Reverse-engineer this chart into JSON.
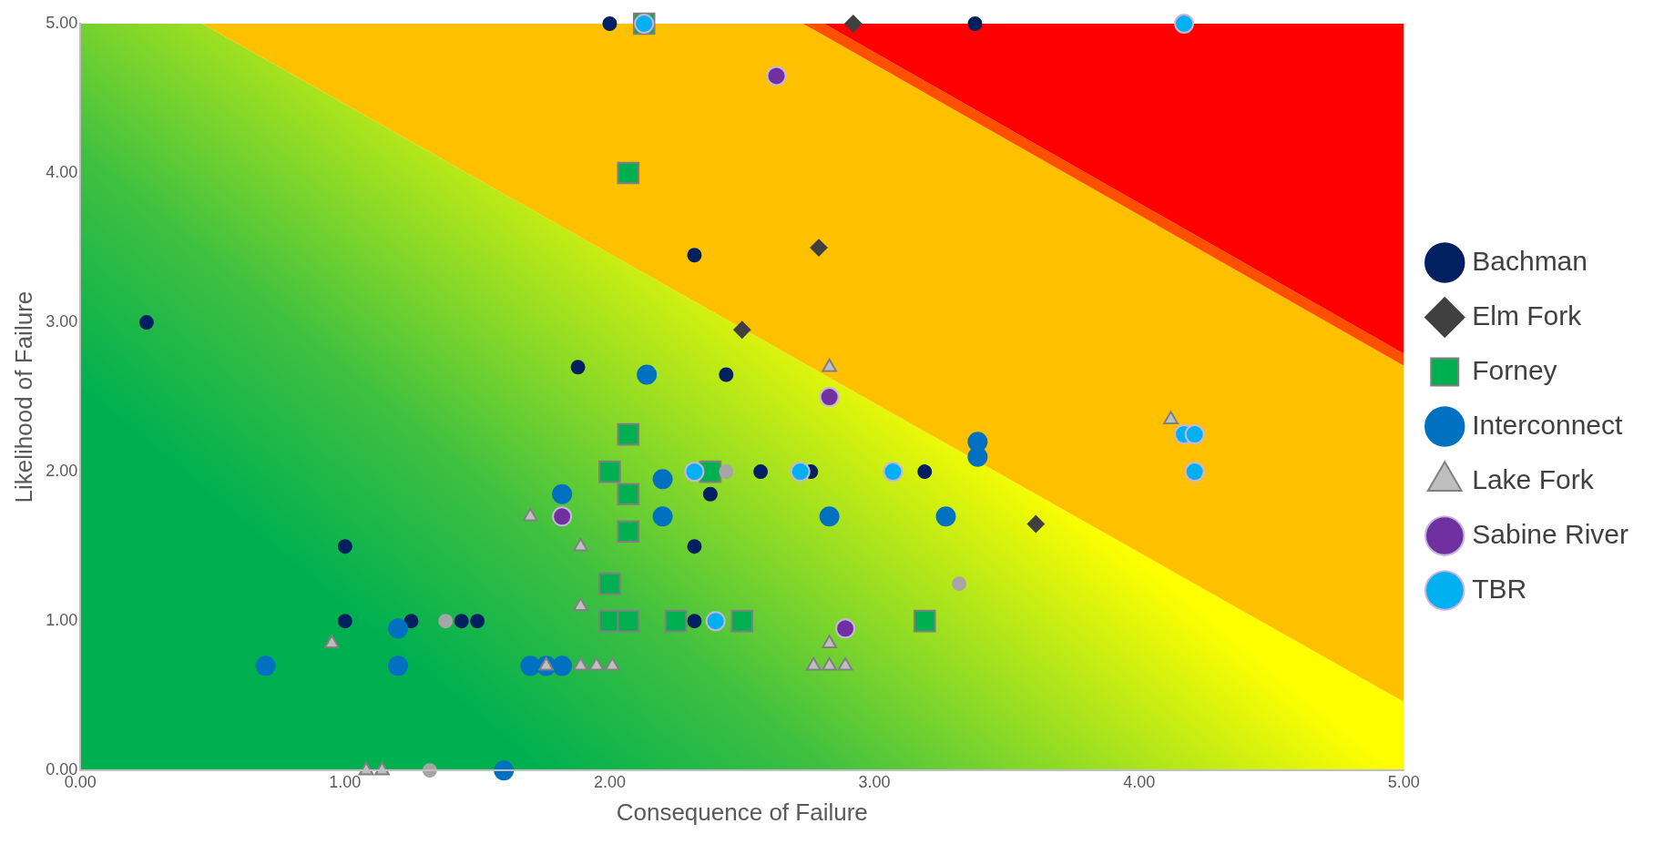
{
  "chart_data": {
    "type": "scatter",
    "xlabel": "Consequence of Failure",
    "ylabel": "Likelihood of Failure",
    "xlim": [
      0,
      5
    ],
    "ylim": [
      0,
      5
    ],
    "xticks": [
      {
        "value": 0,
        "label": "0.00"
      },
      {
        "value": 1,
        "label": "1.00"
      },
      {
        "value": 2,
        "label": "2.00"
      },
      {
        "value": 3,
        "label": "3.00"
      },
      {
        "value": 4,
        "label": "4.00"
      },
      {
        "value": 5,
        "label": "5.00"
      }
    ],
    "yticks": [
      {
        "value": 0,
        "label": "0.00"
      },
      {
        "value": 1,
        "label": "1.00"
      },
      {
        "value": 2,
        "label": "2.00"
      },
      {
        "value": 3,
        "label": "3.00"
      },
      {
        "value": 4,
        "label": "4.00"
      },
      {
        "value": 5,
        "label": "5.00"
      }
    ],
    "grid": false,
    "legend": "right",
    "series": [
      {
        "name": "Bachman",
        "color": "#002060",
        "marker": "circle",
        "x": [
          2.0,
          3.38,
          0.25,
          2.32,
          1.88,
          2.44,
          2.57,
          2.76,
          3.19,
          2.38,
          2.32,
          1.0,
          1.0,
          1.25,
          1.44,
          1.5,
          2.32
        ],
        "values": [
          5.0,
          5.0,
          3.0,
          3.45,
          2.7,
          2.65,
          2.0,
          2.0,
          2.0,
          1.85,
          1.5,
          1.5,
          1.0,
          1.0,
          1.0,
          1.0,
          1.0
        ]
      },
      {
        "name": "Elm Fork",
        "color": "#404040",
        "marker": "diamond",
        "x": [
          2.92,
          2.79,
          2.5,
          3.61
        ],
        "values": [
          5.0,
          3.5,
          2.95,
          1.65
        ]
      },
      {
        "name": "Forney",
        "color": "#00b050",
        "marker": "square",
        "x": [
          2.13,
          2.07,
          2.07,
          2.0,
          2.38,
          2.07,
          2.07,
          2.0,
          2.0,
          2.07,
          2.25,
          2.5,
          3.19
        ],
        "values": [
          5.0,
          4.0,
          2.25,
          2.0,
          2.0,
          1.85,
          1.6,
          1.25,
          1.0,
          1.0,
          1.0,
          1.0,
          1.0
        ]
      },
      {
        "name": "Interconnect",
        "color": "#0070c0",
        "marker": "circle",
        "x": [
          0.7,
          1.2,
          1.2,
          1.7,
          1.76,
          1.82,
          1.6,
          1.82,
          2.14,
          2.2,
          2.2,
          2.83,
          3.27,
          3.39,
          3.39
        ],
        "values": [
          0.7,
          0.95,
          0.7,
          0.7,
          0.7,
          0.7,
          0.0,
          1.85,
          2.65,
          1.95,
          1.7,
          1.7,
          1.7,
          2.2,
          2.1
        ]
      },
      {
        "name": "Lake Fork",
        "color": "#bfbfbf",
        "marker": "triangle",
        "x": [
          0.95,
          1.08,
          1.14,
          1.7,
          1.89,
          1.89,
          1.76,
          1.89,
          1.95,
          2.01,
          2.83,
          2.77,
          2.83,
          2.89,
          2.83,
          4.12
        ],
        "values": [
          0.85,
          0.0,
          0.0,
          1.7,
          1.5,
          1.1,
          0.7,
          0.7,
          0.7,
          0.7,
          2.7,
          0.7,
          0.7,
          0.7,
          0.85,
          2.35
        ]
      },
      {
        "name": "Sabine River",
        "color": "#7030a0",
        "marker": "circle",
        "x": [
          2.63,
          2.83,
          1.82,
          2.89
        ],
        "values": [
          4.65,
          2.5,
          1.7,
          0.95
        ]
      },
      {
        "name": "TBR",
        "color": "#00b0f0",
        "marker": "circle",
        "x": [
          2.13,
          4.17,
          2.32,
          2.72,
          3.07,
          2.4,
          4.17,
          4.21,
          4.21
        ],
        "values": [
          5.0,
          5.0,
          2.0,
          2.0,
          2.0,
          1.0,
          2.25,
          2.25,
          2.0
        ]
      },
      {
        "color": "#a6a6a6",
        "marker": "circle",
        "x": [
          1.38,
          1.32,
          2.44,
          3.32
        ],
        "values": [
          1.0,
          0.0,
          2.0,
          1.25
        ]
      },
      {
        "type": "area",
        "colors": [
          "#00b050",
          "#00b050",
          "#40c040",
          "#a0e020",
          "#ffff00"
        ],
        "marker": "none",
        "x": [
          0.0,
          0.46,
          2.73,
          2.81,
          5.0
        ],
        "values": [
          5.0,
          5.0,
          2.73,
          2.65,
          0.46
        ]
      },
      {
        "type": "area",
        "color": "#ffc000",
        "marker": "none",
        "x": [
          0.0,
          0.46,
          2.73,
          2.81,
          5.0
        ],
        "values": [
          0.0,
          0.0,
          2.27,
          2.27,
          2.25
        ]
      },
      {
        "type": "area",
        "color": "#ff5000",
        "marker": "none",
        "x": [
          0.0,
          0.46,
          2.73,
          2.81,
          5.0
        ],
        "values": [
          0.0,
          0.0,
          0.0,
          0.08,
          0.08
        ]
      },
      {
        "type": "area",
        "color": "#ff0000",
        "marker": "none",
        "x": [
          0.0,
          0.46,
          2.73,
          2.81,
          5.0
        ],
        "values": [
          0.0,
          0.0,
          0.0,
          0.0,
          2.21
        ]
      }
    ],
    "stacked": true
  }
}
